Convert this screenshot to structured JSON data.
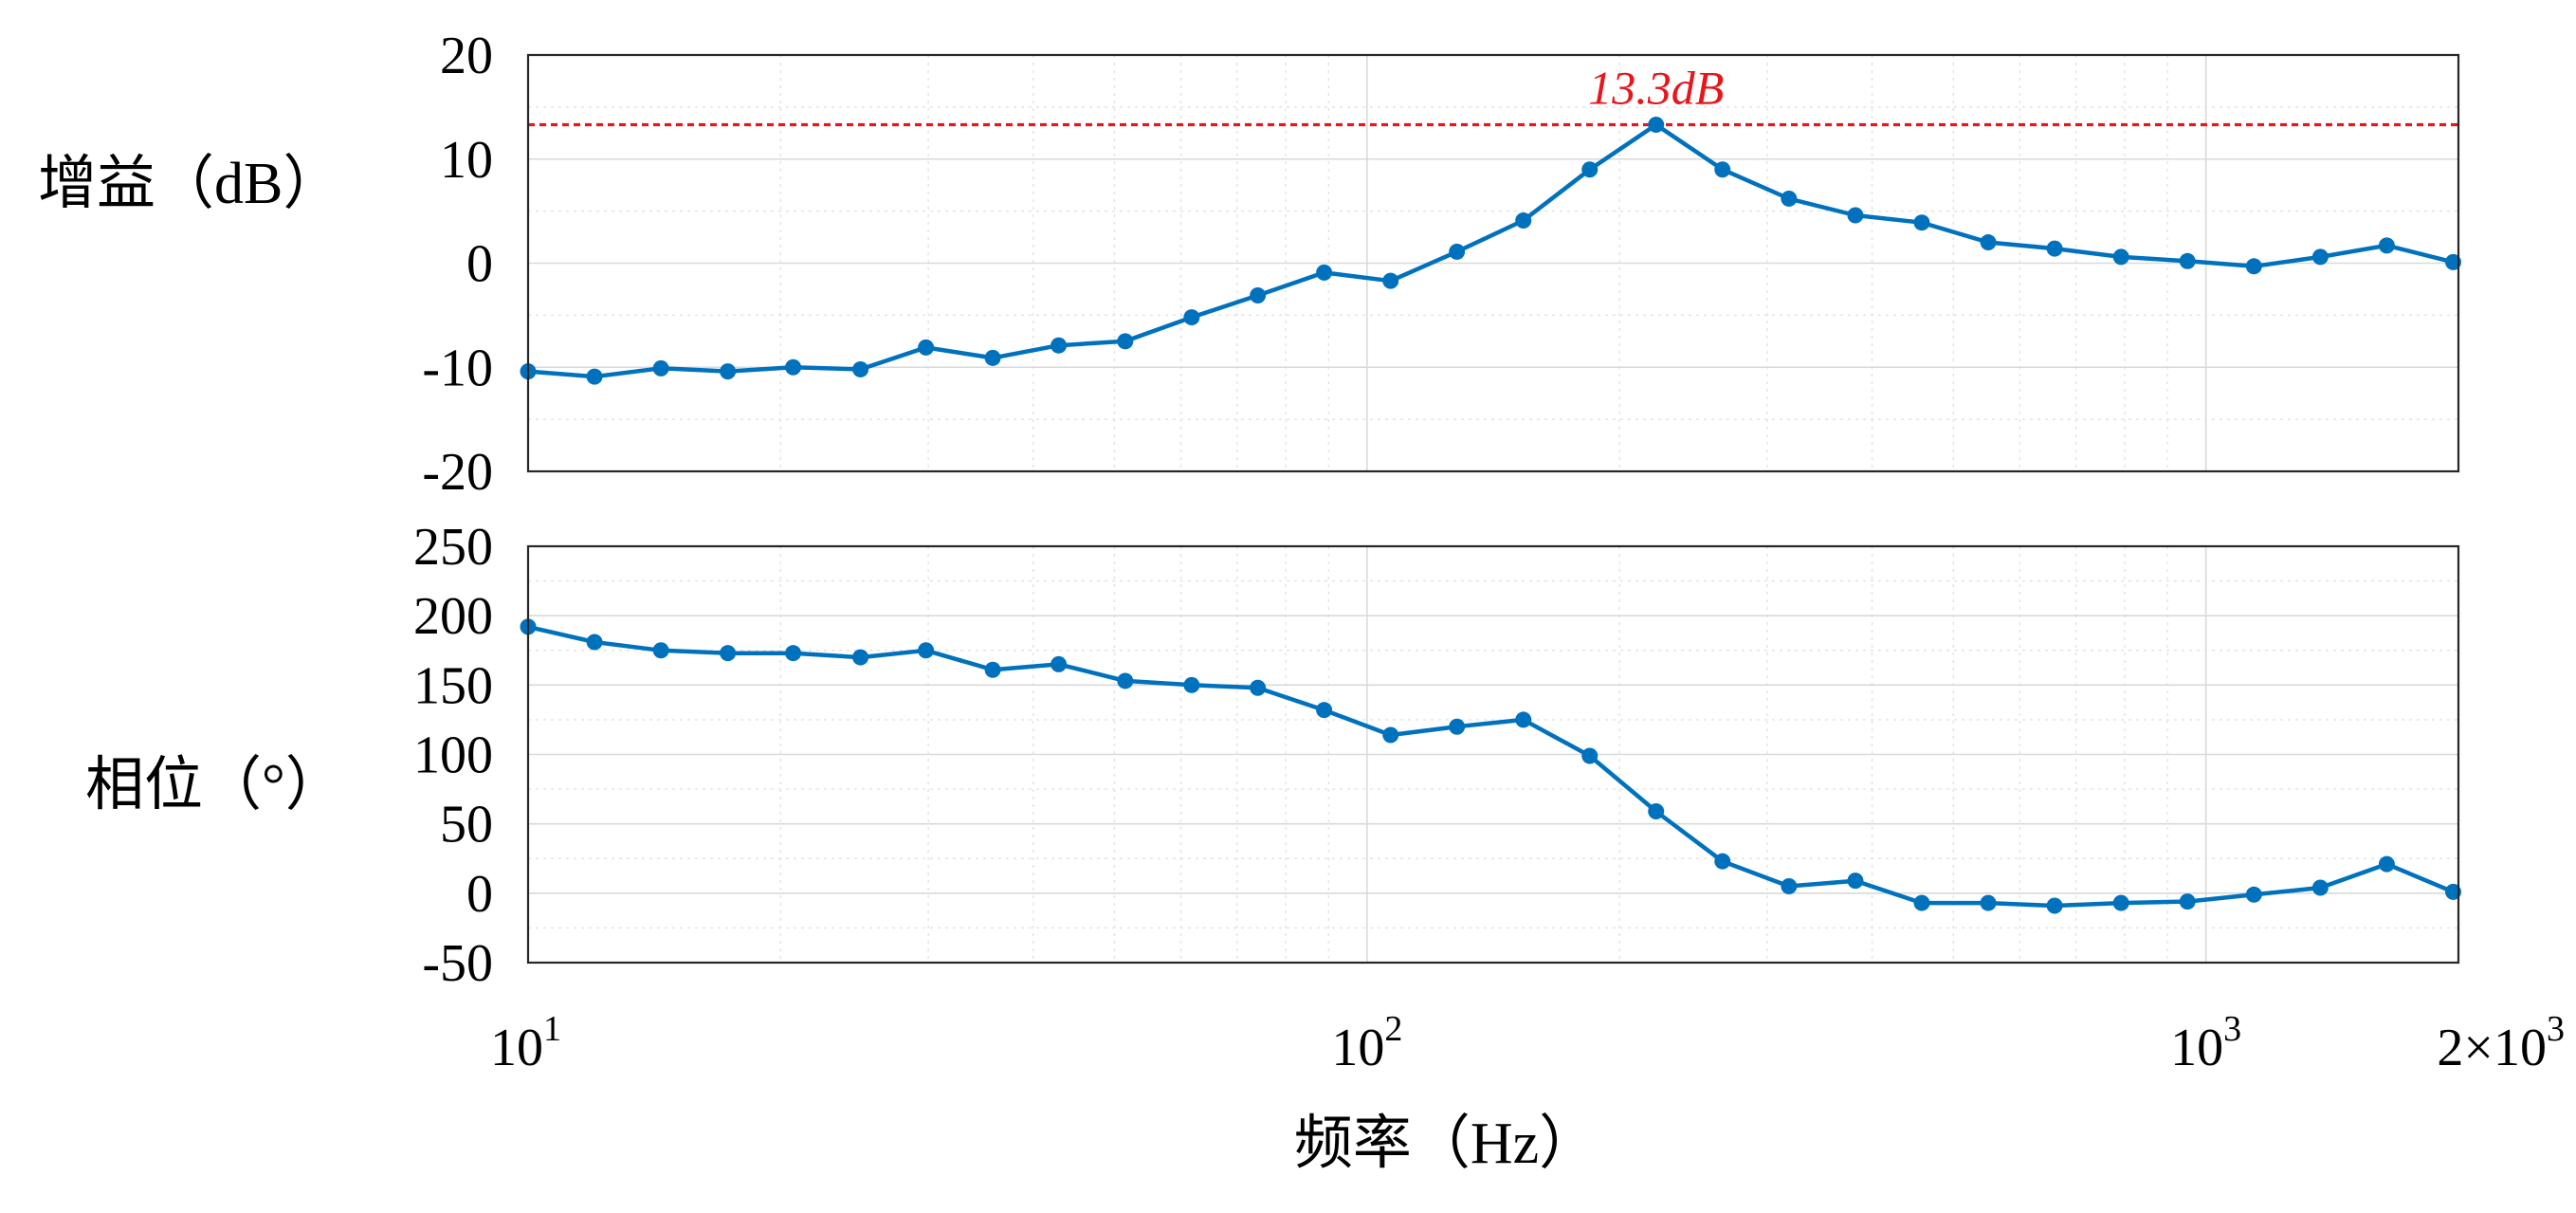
{
  "chart_data": [
    {
      "type": "line",
      "ylabel": "增益（dB）",
      "xlabel": "",
      "xscale": "log",
      "xlim": [
        10,
        2000
      ],
      "ylim": [
        -20,
        20
      ],
      "yticks": [
        "20",
        "10",
        "0",
        "-10",
        "-20"
      ],
      "grid": true,
      "reference_line": {
        "y": 13.3,
        "label": "13.3dB",
        "color": "#e8151b"
      },
      "series": [
        {
          "color": "#0072bd",
          "x": [
            10,
            12,
            14.4,
            17.3,
            20.7,
            24.9,
            29.8,
            35.8,
            42.9,
            51.5,
            61.8,
            74.1,
            88.9,
            106.7,
            128,
            153.6,
            184.3,
            221.1,
            265.3,
            318.4,
            382.1,
            458.5,
            550.2,
            660.2,
            792.3,
            950.7,
            1140.9,
            1369.1,
            1642.9,
            1971.5
          ],
          "y": [
            -10.4,
            -10.9,
            -10.1,
            -10.4,
            -10.0,
            -10.2,
            -8.1,
            -9.1,
            -7.9,
            -7.5,
            -5.2,
            -3.1,
            -0.9,
            -1.7,
            1.1,
            4.1,
            9.0,
            13.3,
            9.0,
            6.2,
            4.6,
            3.9,
            2.0,
            1.4,
            0.6,
            0.2,
            -0.3,
            0.6,
            1.7,
            0.1
          ]
        }
      ]
    },
    {
      "type": "line",
      "ylabel": "相位（°）",
      "xlabel": "频率（Hz）",
      "xscale": "log",
      "xlim": [
        10,
        2000
      ],
      "ylim": [
        -50,
        250
      ],
      "yticks": [
        "250",
        "200",
        "150",
        "100",
        "50",
        "0",
        "-50"
      ],
      "xticks": [
        {
          "value": 10,
          "base": "10",
          "exp": "1"
        },
        {
          "value": 100,
          "base": "10",
          "exp": "2"
        },
        {
          "value": 1000,
          "base": "10",
          "exp": "3"
        },
        {
          "value": 2000,
          "base": "2×10",
          "exp": "3"
        }
      ],
      "grid": true,
      "series": [
        {
          "color": "#0072bd",
          "x": [
            10,
            12,
            14.4,
            17.3,
            20.7,
            24.9,
            29.8,
            35.8,
            42.9,
            51.5,
            61.8,
            74.1,
            88.9,
            106.7,
            128,
            153.6,
            184.3,
            221.1,
            265.3,
            318.4,
            382.1,
            458.5,
            550.2,
            660.2,
            792.3,
            950.7,
            1140.9,
            1369.1,
            1642.9,
            1971.5
          ],
          "y": [
            192,
            181,
            175,
            173,
            173,
            170,
            175,
            161,
            165,
            153,
            150,
            148,
            132,
            114,
            120,
            125,
            99,
            59,
            23,
            5,
            9,
            -7,
            -7,
            -9,
            -7,
            -6,
            -1,
            4,
            21,
            1
          ]
        }
      ]
    }
  ]
}
